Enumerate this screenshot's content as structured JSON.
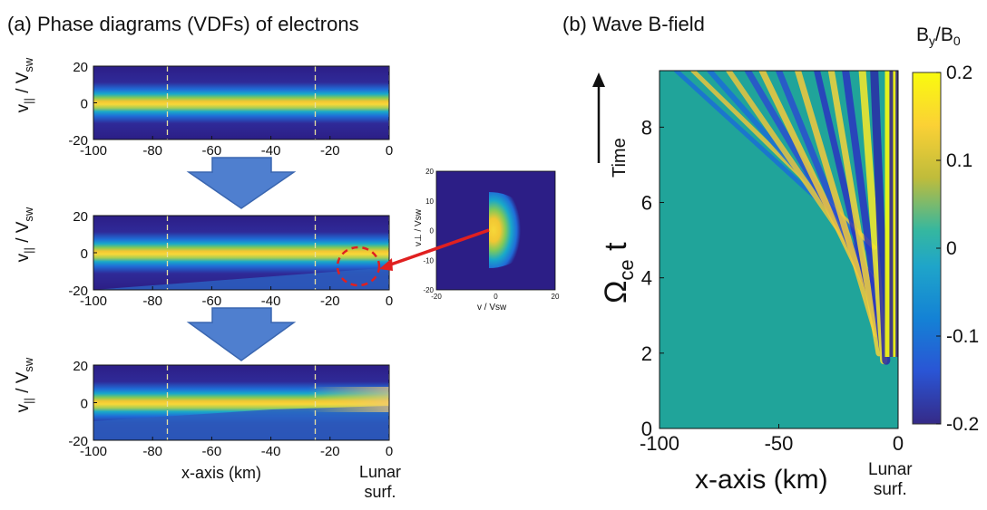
{
  "titles": {
    "left": "(a) Phase diagrams (VDFs) of electrons",
    "right": "(b) Wave B-field"
  },
  "left_panel": {
    "ylabel_main": "v",
    "ylabel_sub": "||",
    "ylabel_den": " / V",
    "ylabel_den_sub": "sw",
    "xlabel": "x-axis (km)",
    "surface_label": [
      "Lunar",
      "surf."
    ]
  },
  "inset": {
    "ylabel": "v⊥ / Vsw",
    "xlabel": "v / Vsw"
  },
  "right_panel": {
    "ylabel": "Ωce t",
    "time_label": "Time",
    "xlabel": "x-axis (km)",
    "surface_label": [
      "Lunar",
      "surf."
    ],
    "colorbar_label": "By/B0",
    "colorbar_ticks": [
      "0.2",
      "0.1",
      "0",
      "-0.1",
      "-0.2"
    ]
  },
  "colors": {
    "arrow_fill": "#4f7fcf",
    "arrow_stroke": "#3a66b0",
    "red": "#e02020",
    "bg_dark": "#2c1e86",
    "core": "#f5d22f"
  },
  "chart_data": [
    {
      "type": "heatmap",
      "title": "(a) Phase diagrams (VDFs) of electrons",
      "panels": [
        {
          "id": "top",
          "stage": "initial",
          "beam": false
        },
        {
          "id": "middle",
          "stage": "intermediate",
          "beam": true,
          "circled_region_x": [
            -17,
            -3
          ]
        },
        {
          "id": "bottom",
          "stage": "late",
          "beam": true
        }
      ],
      "x": {
        "label": "x-axis (km)",
        "range": [
          -100,
          0
        ],
        "ticks": [
          -100,
          -80,
          -60,
          -40,
          -20,
          0
        ]
      },
      "y": {
        "label": "v|| / Vsw",
        "range": [
          -20,
          20
        ],
        "ticks": [
          -20,
          0,
          20
        ]
      },
      "dashed_lines_x": [
        -75,
        -25,
        0
      ]
    },
    {
      "type": "heatmap",
      "title": "",
      "x": {
        "label": "v / Vsw",
        "range": [
          -20,
          20
        ],
        "ticks": [
          -20,
          0,
          20
        ]
      },
      "y": {
        "label": "v⊥ / Vsw",
        "range": [
          -20,
          20
        ],
        "ticks": [
          -20,
          -10,
          0,
          10,
          20
        ]
      }
    },
    {
      "type": "heatmap",
      "title": "(b) Wave B-field",
      "x": {
        "label": "x-axis (km)",
        "range": [
          -100,
          0
        ],
        "ticks": [
          -100,
          -50,
          0
        ]
      },
      "y": {
        "label": "Ωce t",
        "range": [
          0,
          9.5
        ],
        "ticks": [
          0,
          2,
          4,
          6,
          8
        ]
      },
      "colorbar": {
        "label": "By/B0",
        "range": [
          -0.2,
          0.2
        ],
        "ticks": [
          0.2,
          0.1,
          0,
          -0.1,
          -0.2
        ]
      }
    }
  ]
}
